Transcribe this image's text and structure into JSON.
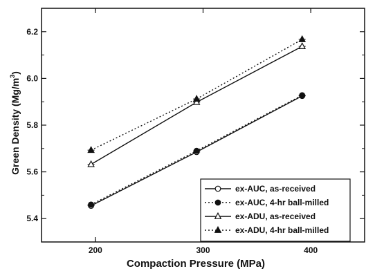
{
  "chart_data": {
    "type": "line",
    "xlabel": "Compaction Pressure (MPa)",
    "ylabel_main": "Green Density (Mg/m",
    "ylabel_sup": "3",
    "ylabel_close": ")",
    "xlim": [
      150,
      450
    ],
    "ylim": [
      5.3,
      6.3
    ],
    "x_ticks": [
      200,
      300,
      400
    ],
    "x_tick_labels": [
      "200",
      "300",
      "400"
    ],
    "y_ticks": [
      5.4,
      5.6,
      5.8,
      6.0,
      6.2
    ],
    "y_tick_labels": [
      "5.4",
      "5.6",
      "5.8",
      "6.0",
      "6.2"
    ],
    "grid": false,
    "legend_position": "bottom-right",
    "series": [
      {
        "name": "ex-AUC, as-received",
        "marker": "circle-open",
        "line": "solid",
        "x": [
          196,
          294,
          392
        ],
        "y": [
          5.455,
          5.685,
          5.925
        ]
      },
      {
        "name": "ex-AUC, 4-hr ball-milled",
        "marker": "circle-filled",
        "line": "dotted",
        "x": [
          196,
          294,
          392
        ],
        "y": [
          5.46,
          5.69,
          5.928
        ]
      },
      {
        "name": "ex-ADU, as-received",
        "marker": "triangle-open",
        "line": "solid",
        "x": [
          196,
          294,
          392
        ],
        "y": [
          5.632,
          5.898,
          6.137
        ]
      },
      {
        "name": "ex-ADU, 4-hr ball-milled",
        "marker": "triangle-filled",
        "line": "dotted",
        "x": [
          196,
          294,
          392
        ],
        "y": [
          5.693,
          5.912,
          6.167
        ]
      }
    ]
  }
}
